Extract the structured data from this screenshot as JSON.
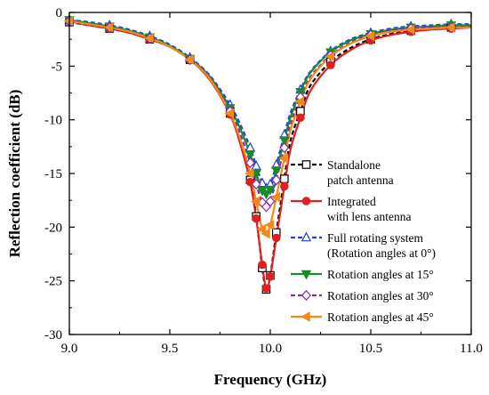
{
  "chart_data": {
    "type": "line",
    "xlabel": "Frequency (GHz)",
    "ylabel": "Reflection coefficient (dB)",
    "xlim": [
      9.0,
      11.0
    ],
    "ylim": [
      -30,
      0
    ],
    "xticks": [
      "9.0",
      "9.5",
      "10.0",
      "10.5",
      "11.0"
    ],
    "yticks": [
      "0",
      "-5",
      "-10",
      "-15",
      "-20",
      "-25",
      "-30"
    ],
    "xtick_values": [
      9.0,
      9.5,
      10.0,
      10.5,
      11.0
    ],
    "ytick_values": [
      0,
      -5,
      -10,
      -15,
      -20,
      -25,
      -30
    ],
    "grid": false,
    "legend_position": "right",
    "series": [
      {
        "name": "Standalone patch antenna",
        "legend_lines": [
          "Standalone",
          "patch antenna"
        ],
        "color": "#000000",
        "dash": "dashed",
        "marker": "open-square",
        "x": [
          9.0,
          9.1,
          9.2,
          9.3,
          9.4,
          9.5,
          9.6,
          9.7,
          9.8,
          9.85,
          9.9,
          9.93,
          9.96,
          9.98,
          10.0,
          10.03,
          10.07,
          10.1,
          10.15,
          10.2,
          10.3,
          10.4,
          10.5,
          10.6,
          10.7,
          10.8,
          10.9,
          11.0
        ],
        "y": [
          -0.9,
          -1.2,
          -1.5,
          -1.9,
          -2.5,
          -3.2,
          -4.4,
          -6.2,
          -9.4,
          -12.0,
          -15.6,
          -19.0,
          -23.8,
          -25.8,
          -24.5,
          -20.5,
          -15.5,
          -12.0,
          -9.2,
          -6.8,
          -4.6,
          -3.3,
          -2.5,
          -2.0,
          -1.7,
          -1.5,
          -1.4,
          -1.3
        ]
      },
      {
        "name": "Integrated with lens antenna",
        "legend_lines": [
          "Integrated",
          "with lens antenna"
        ],
        "color": "#e02020",
        "dash": "solid",
        "marker": "filled-circle",
        "x": [
          9.0,
          9.1,
          9.2,
          9.3,
          9.4,
          9.5,
          9.6,
          9.7,
          9.8,
          9.85,
          9.9,
          9.93,
          9.96,
          9.98,
          10.0,
          10.03,
          10.07,
          10.1,
          10.15,
          10.2,
          10.3,
          10.4,
          10.5,
          10.6,
          10.7,
          10.8,
          10.9,
          11.0
        ],
        "y": [
          -0.8,
          -1.2,
          -1.5,
          -1.9,
          -2.5,
          -3.2,
          -4.4,
          -6.3,
          -9.5,
          -12.2,
          -15.8,
          -19.2,
          -23.5,
          -25.7,
          -24.6,
          -21.0,
          -16.2,
          -12.8,
          -9.8,
          -7.3,
          -4.9,
          -3.5,
          -2.6,
          -2.1,
          -1.8,
          -1.6,
          -1.5,
          -1.4
        ]
      },
      {
        "name": "Full rotating system (Rotation angles at 0°)",
        "legend_lines": [
          "Full rotating system",
          "(Rotation angles at 0°)"
        ],
        "color": "#1f3fe0",
        "dash": "dashed",
        "marker": "open-triangle-up",
        "x": [
          9.0,
          9.1,
          9.2,
          9.3,
          9.4,
          9.5,
          9.6,
          9.7,
          9.8,
          9.85,
          9.9,
          9.93,
          9.96,
          9.98,
          10.0,
          10.03,
          10.07,
          10.1,
          10.15,
          10.2,
          10.3,
          10.4,
          10.5,
          10.6,
          10.7,
          10.8,
          10.9,
          11.0
        ],
        "y": [
          -0.7,
          -0.9,
          -1.2,
          -1.6,
          -2.2,
          -3.0,
          -4.2,
          -5.9,
          -8.6,
          -10.4,
          -12.6,
          -14.3,
          -15.9,
          -16.4,
          -16.0,
          -14.2,
          -11.4,
          -9.4,
          -7.2,
          -5.5,
          -3.6,
          -2.5,
          -1.9,
          -1.5,
          -1.3,
          -1.2,
          -1.1,
          -1.1
        ]
      },
      {
        "name": "Rotation angles at 15°",
        "legend_lines": [
          "Rotation angles at 15°"
        ],
        "color": "#1a8a2a",
        "dash": "solid",
        "marker": "filled-triangle-down",
        "x": [
          9.0,
          9.1,
          9.2,
          9.3,
          9.4,
          9.5,
          9.6,
          9.7,
          9.8,
          9.85,
          9.9,
          9.93,
          9.96,
          9.98,
          10.0,
          10.03,
          10.07,
          10.1,
          10.15,
          10.2,
          10.3,
          10.4,
          10.5,
          10.6,
          10.7,
          10.8,
          10.9,
          11.0
        ],
        "y": [
          -0.7,
          -1.0,
          -1.3,
          -1.7,
          -2.3,
          -3.1,
          -4.3,
          -6.0,
          -8.9,
          -10.8,
          -13.2,
          -15.0,
          -16.6,
          -16.9,
          -16.5,
          -14.7,
          -11.9,
          -9.8,
          -7.4,
          -5.6,
          -3.7,
          -2.6,
          -2.0,
          -1.6,
          -1.4,
          -1.3,
          -1.2,
          -1.2
        ]
      },
      {
        "name": "Rotation angles at 30°",
        "legend_lines": [
          "Rotation angles at 30°"
        ],
        "color": "#8a2aa8",
        "dash": "dashed",
        "marker": "open-diamond",
        "x": [
          9.0,
          9.1,
          9.2,
          9.3,
          9.4,
          9.5,
          9.6,
          9.7,
          9.8,
          9.85,
          9.9,
          9.93,
          9.96,
          9.98,
          10.0,
          10.03,
          10.07,
          10.1,
          10.15,
          10.2,
          10.3,
          10.4,
          10.5,
          10.6,
          10.7,
          10.8,
          10.9,
          11.0
        ],
        "y": [
          -0.8,
          -1.1,
          -1.4,
          -1.8,
          -2.4,
          -3.2,
          -4.4,
          -6.1,
          -9.2,
          -11.3,
          -14.0,
          -16.0,
          -17.7,
          -18.1,
          -17.6,
          -15.6,
          -12.6,
          -10.4,
          -7.9,
          -6.0,
          -4.0,
          -2.8,
          -2.1,
          -1.7,
          -1.5,
          -1.4,
          -1.4,
          -1.4
        ]
      },
      {
        "name": "Rotation angles at 45°",
        "legend_lines": [
          "Rotation angles at 45°"
        ],
        "color": "#f08a1a",
        "dash": "solid",
        "marker": "filled-triangle-left",
        "x": [
          9.0,
          9.1,
          9.2,
          9.3,
          9.4,
          9.5,
          9.6,
          9.7,
          9.8,
          9.85,
          9.9,
          9.93,
          9.96,
          9.98,
          10.0,
          10.03,
          10.07,
          10.1,
          10.15,
          10.2,
          10.3,
          10.4,
          10.5,
          10.6,
          10.7,
          10.8,
          10.9,
          11.0
        ],
        "y": [
          -0.8,
          -1.1,
          -1.4,
          -1.8,
          -2.4,
          -3.2,
          -4.4,
          -6.2,
          -9.4,
          -11.8,
          -15.0,
          -17.6,
          -20.2,
          -20.6,
          -19.8,
          -17.2,
          -13.6,
          -11.0,
          -8.3,
          -6.2,
          -4.1,
          -2.9,
          -2.2,
          -1.8,
          -1.6,
          -1.5,
          -1.4,
          -1.4
        ]
      }
    ]
  }
}
